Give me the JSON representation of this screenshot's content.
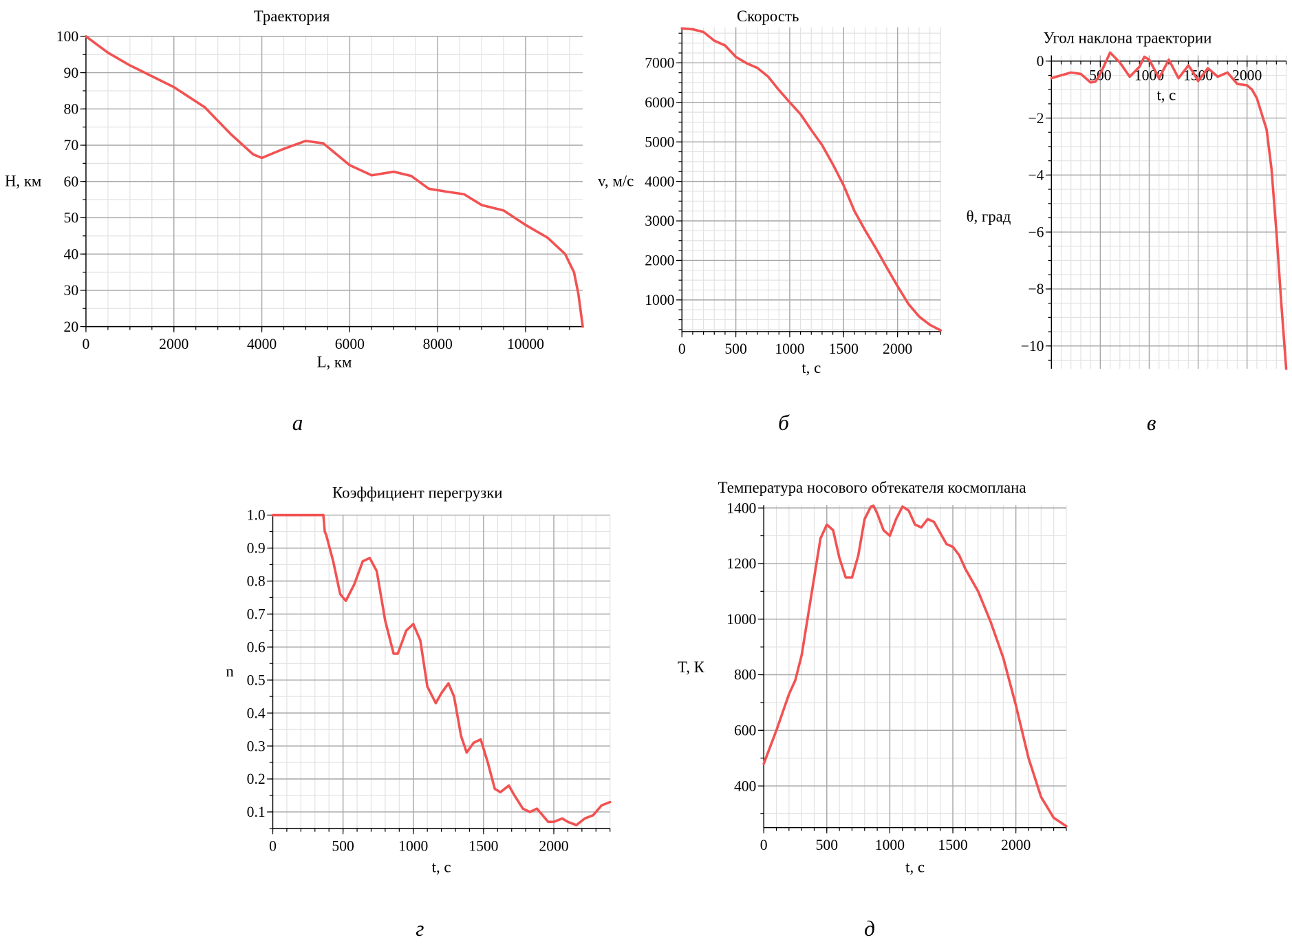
{
  "colors": {
    "curve": "#f25252",
    "grid_major": "#a8a8a8",
    "grid_minor": "#e2e2e2"
  },
  "chart_data": [
    {
      "type": "line",
      "title": "Траектория",
      "xlabel": "L, км",
      "ylabel": "H, км",
      "caption": "а",
      "xlim": [
        0,
        11300
      ],
      "ylim": [
        20,
        100
      ],
      "xticks": [
        0,
        2000,
        4000,
        6000,
        8000,
        10000
      ],
      "yticks": [
        20,
        30,
        40,
        50,
        60,
        70,
        80,
        90,
        100
      ],
      "grid": true,
      "series": [
        {
          "x": [
            0,
            500,
            1000,
            2000,
            2700,
            3300,
            3800,
            4000,
            4500,
            5000,
            5400,
            6000,
            6500,
            7000,
            7400,
            7800,
            8200,
            8600,
            9000,
            9500,
            10000,
            10500,
            10900,
            11100,
            11200,
            11300
          ],
          "y": [
            100,
            95.5,
            92,
            86,
            80.5,
            73,
            67.5,
            66.5,
            69,
            71.2,
            70.5,
            64.5,
            61.7,
            62.7,
            61.5,
            58,
            57.2,
            56.5,
            53.5,
            52,
            48,
            44.5,
            40,
            35,
            29,
            20
          ]
        }
      ]
    },
    {
      "type": "line",
      "title": "Скорость",
      "xlabel": "t, с",
      "ylabel": "v, м/с",
      "caption": "б",
      "xlim": [
        0,
        2400
      ],
      "ylim": [
        200,
        7900
      ],
      "xticks": [
        0,
        500,
        1000,
        1500,
        2000
      ],
      "yticks": [
        1000,
        2000,
        3000,
        4000,
        5000,
        6000,
        7000
      ],
      "grid": true,
      "series": [
        {
          "x": [
            0,
            100,
            200,
            300,
            400,
            500,
            600,
            700,
            800,
            900,
            1000,
            1100,
            1200,
            1300,
            1400,
            1500,
            1600,
            1700,
            1800,
            1900,
            2000,
            2100,
            2200,
            2300,
            2400
          ],
          "y": [
            7870,
            7850,
            7780,
            7560,
            7440,
            7150,
            6990,
            6870,
            6650,
            6310,
            6000,
            5700,
            5300,
            4920,
            4430,
            3900,
            3250,
            2760,
            2300,
            1820,
            1350,
            900,
            580,
            370,
            230
          ]
        }
      ]
    },
    {
      "type": "line",
      "title": "Угол наклона траектории",
      "xlabel": "t, с",
      "ylabel": "θ, град",
      "caption": "в",
      "xlim": [
        0,
        2400
      ],
      "ylim": [
        -10.8,
        0.2
      ],
      "xticks": [
        500,
        1000,
        1500,
        2000
      ],
      "yticks": [
        0,
        -2,
        -4,
        -6,
        -8,
        -10
      ],
      "grid": true,
      "series": [
        {
          "x": [
            0,
            100,
            200,
            300,
            400,
            450,
            500,
            600,
            700,
            800,
            900,
            950,
            1000,
            1100,
            1200,
            1300,
            1400,
            1450,
            1500,
            1600,
            1700,
            1800,
            1900,
            2000,
            2050,
            2100,
            2200,
            2250,
            2300,
            2350,
            2400
          ],
          "y": [
            -0.6,
            -0.5,
            -0.4,
            -0.45,
            -0.75,
            -0.72,
            -0.45,
            0.3,
            -0.05,
            -0.55,
            -0.2,
            0.15,
            0.05,
            -0.6,
            0.05,
            -0.6,
            -0.15,
            -0.4,
            -0.7,
            -0.25,
            -0.55,
            -0.4,
            -0.8,
            -0.85,
            -1.0,
            -1.3,
            -2.4,
            -3.8,
            -6.0,
            -8.5,
            -10.8
          ]
        }
      ]
    },
    {
      "type": "line",
      "title": "Коэффициент перегрузки",
      "xlabel": "t, с",
      "ylabel": "n",
      "caption": "г",
      "xlim": [
        0,
        2400
      ],
      "ylim": [
        0.05,
        1.0
      ],
      "xticks": [
        0,
        500,
        1000,
        1500,
        2000
      ],
      "yticks": [
        0.1,
        0.2,
        0.3,
        0.4,
        0.5,
        0.6,
        0.7,
        0.8,
        0.9,
        1.0
      ],
      "grid": true,
      "series": [
        {
          "x": [
            0,
            350,
            360,
            370,
            380,
            430,
            480,
            520,
            580,
            640,
            690,
            740,
            800,
            860,
            890,
            950,
            1000,
            1050,
            1100,
            1160,
            1200,
            1250,
            1290,
            1340,
            1380,
            1430,
            1480,
            1530,
            1580,
            1620,
            1680,
            1720,
            1780,
            1830,
            1880,
            1920,
            1960,
            2000,
            2060,
            2100,
            2160,
            2220,
            2280,
            2340,
            2400
          ],
          "y": [
            1.0,
            1.0,
            1.0,
            0.95,
            0.94,
            0.86,
            0.76,
            0.74,
            0.79,
            0.86,
            0.87,
            0.83,
            0.68,
            0.58,
            0.58,
            0.65,
            0.67,
            0.62,
            0.48,
            0.43,
            0.46,
            0.49,
            0.45,
            0.33,
            0.28,
            0.31,
            0.32,
            0.25,
            0.17,
            0.16,
            0.18,
            0.15,
            0.11,
            0.1,
            0.11,
            0.09,
            0.07,
            0.07,
            0.08,
            0.07,
            0.06,
            0.08,
            0.09,
            0.12,
            0.13
          ]
        }
      ]
    },
    {
      "type": "line",
      "title": "Температура носового обтекателя космоплана",
      "xlabel": "t, с",
      "ylabel": "T, К",
      "caption": "д",
      "xlim": [
        0,
        2400
      ],
      "ylim": [
        250,
        1410
      ],
      "xticks": [
        0,
        500,
        1000,
        1500,
        2000
      ],
      "yticks": [
        400,
        600,
        800,
        1000,
        1200,
        1400
      ],
      "grid": true,
      "series": [
        {
          "x": [
            0,
            100,
            200,
            250,
            300,
            400,
            450,
            500,
            550,
            600,
            650,
            700,
            750,
            800,
            850,
            870,
            900,
            950,
            1000,
            1050,
            1100,
            1150,
            1200,
            1250,
            1300,
            1350,
            1400,
            1450,
            1500,
            1550,
            1600,
            1700,
            1800,
            1900,
            2000,
            2100,
            2200,
            2300,
            2400
          ],
          "y": [
            480,
            600,
            730,
            780,
            870,
            1150,
            1290,
            1340,
            1320,
            1220,
            1150,
            1150,
            1230,
            1360,
            1405,
            1408,
            1380,
            1320,
            1300,
            1360,
            1405,
            1390,
            1340,
            1330,
            1360,
            1350,
            1310,
            1270,
            1260,
            1230,
            1180,
            1100,
            990,
            860,
            690,
            500,
            360,
            285,
            255
          ]
        }
      ]
    }
  ]
}
